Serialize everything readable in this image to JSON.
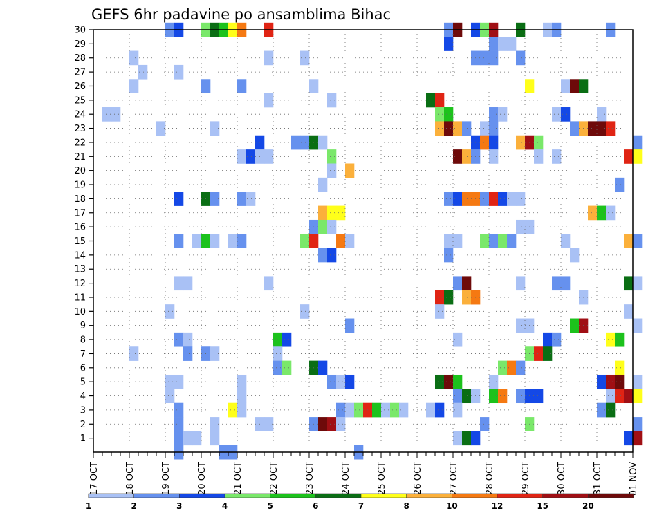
{
  "chart_data": {
    "type": "heatmap",
    "title": "GEFS 6hr padavine po ansamblima Bihac",
    "x_tick_labels": [
      "17 OCT",
      "18 OCT",
      "19 OCT",
      "20 OCT",
      "21 OCT",
      "22 OCT",
      "23 OCT",
      "24 OCT",
      "25 OCT",
      "26 OCT",
      "27 OCT",
      "28 OCT",
      "29 OCT",
      "30 OCT",
      "31 OCT",
      "01 NOV"
    ],
    "y_tick_labels": [
      "1",
      "2",
      "3",
      "4",
      "5",
      "6",
      "7",
      "8",
      "9",
      "10",
      "11",
      "12",
      "13",
      "14",
      "15",
      "16",
      "17",
      "18",
      "19",
      "20",
      "21",
      "22",
      "23",
      "24",
      "25",
      "26",
      "27",
      "28",
      "29",
      "30"
    ],
    "xlim_days": [
      0,
      15
    ],
    "ylim_members": [
      0,
      30
    ],
    "grid": true,
    "legend_position": "bottom",
    "legend": {
      "labels": [
        "1",
        "2",
        "3",
        "4",
        "5",
        "6",
        "7",
        "8",
        "10",
        "12",
        "15",
        "20"
      ],
      "colors": [
        "#a9c1f5",
        "#6691ee",
        "#1448e6",
        "#7ae86a",
        "#1cc21c",
        "#0a6e14",
        "#ffff1a",
        "#fbb03b",
        "#f57912",
        "#e02414",
        "#a00f14",
        "#6e0a0a"
      ]
    },
    "color_scale_note": "",
    "cells_format": "[time_step_index (0=17 OCT 00Z, 6-hourly), ensemble_member, color_index]",
    "cells": [
      [
        8,
        30,
        1
      ],
      [
        9,
        30,
        2
      ],
      [
        12,
        30,
        3
      ],
      [
        13,
        30,
        5
      ],
      [
        14,
        30,
        4
      ],
      [
        15,
        30,
        6
      ],
      [
        16,
        30,
        8
      ],
      [
        19,
        30,
        9
      ],
      [
        39,
        30,
        1
      ],
      [
        40,
        30,
        11
      ],
      [
        42,
        30,
        2
      ],
      [
        43,
        30,
        3
      ],
      [
        44,
        30,
        10
      ],
      [
        47,
        30,
        5
      ],
      [
        50,
        30,
        0
      ],
      [
        51,
        30,
        1
      ],
      [
        57,
        30,
        1
      ],
      [
        39,
        29,
        2
      ],
      [
        44,
        29,
        1
      ],
      [
        45,
        29,
        0
      ],
      [
        46,
        29,
        0
      ],
      [
        4,
        28,
        0
      ],
      [
        19,
        28,
        0
      ],
      [
        23,
        28,
        0
      ],
      [
        42,
        28,
        1
      ],
      [
        43,
        28,
        1
      ],
      [
        44,
        28,
        1
      ],
      [
        47,
        28,
        1
      ],
      [
        5,
        27,
        0
      ],
      [
        9,
        27,
        0
      ],
      [
        4,
        26,
        0
      ],
      [
        12,
        26,
        1
      ],
      [
        16,
        26,
        1
      ],
      [
        24,
        26,
        0
      ],
      [
        48,
        26,
        6
      ],
      [
        52,
        26,
        0
      ],
      [
        53,
        26,
        11
      ],
      [
        54,
        26,
        5
      ],
      [
        19,
        25,
        0
      ],
      [
        26,
        25,
        0
      ],
      [
        37,
        25,
        5
      ],
      [
        38,
        25,
        9
      ],
      [
        1,
        24,
        0
      ],
      [
        2,
        24,
        0
      ],
      [
        38,
        24,
        3
      ],
      [
        39,
        24,
        4
      ],
      [
        44,
        24,
        1
      ],
      [
        45,
        24,
        0
      ],
      [
        51,
        24,
        0
      ],
      [
        52,
        24,
        2
      ],
      [
        56,
        24,
        0
      ],
      [
        7,
        23,
        0
      ],
      [
        13,
        23,
        0
      ],
      [
        38,
        23,
        7
      ],
      [
        39,
        23,
        11
      ],
      [
        40,
        23,
        7
      ],
      [
        41,
        23,
        1
      ],
      [
        43,
        23,
        0
      ],
      [
        44,
        23,
        1
      ],
      [
        53,
        23,
        1
      ],
      [
        54,
        23,
        7
      ],
      [
        55,
        23,
        11
      ],
      [
        56,
        23,
        11
      ],
      [
        57,
        23,
        9
      ],
      [
        18,
        22,
        2
      ],
      [
        22,
        22,
        1
      ],
      [
        23,
        22,
        1
      ],
      [
        24,
        22,
        5
      ],
      [
        25,
        22,
        0
      ],
      [
        42,
        22,
        2
      ],
      [
        43,
        22,
        8
      ],
      [
        44,
        22,
        2
      ],
      [
        47,
        22,
        7
      ],
      [
        48,
        22,
        10
      ],
      [
        49,
        22,
        3
      ],
      [
        60,
        22,
        1
      ],
      [
        16,
        21,
        0
      ],
      [
        17,
        21,
        2
      ],
      [
        18,
        21,
        0
      ],
      [
        19,
        21,
        0
      ],
      [
        26,
        21,
        3
      ],
      [
        40,
        21,
        11
      ],
      [
        41,
        21,
        7
      ],
      [
        42,
        21,
        1
      ],
      [
        44,
        21,
        0
      ],
      [
        49,
        21,
        0
      ],
      [
        51,
        21,
        0
      ],
      [
        59,
        21,
        9
      ],
      [
        60,
        21,
        6
      ],
      [
        26,
        20,
        0
      ],
      [
        28,
        20,
        7
      ],
      [
        25,
        19,
        0
      ],
      [
        58,
        19,
        1
      ],
      [
        12,
        18,
        5
      ],
      [
        13,
        18,
        1
      ],
      [
        9,
        18,
        2
      ],
      [
        16,
        18,
        1
      ],
      [
        17,
        18,
        0
      ],
      [
        39,
        18,
        1
      ],
      [
        40,
        18,
        2
      ],
      [
        41,
        18,
        8
      ],
      [
        42,
        18,
        8
      ],
      [
        43,
        18,
        1
      ],
      [
        44,
        18,
        9
      ],
      [
        45,
        18,
        2
      ],
      [
        46,
        18,
        0
      ],
      [
        47,
        18,
        0
      ],
      [
        25,
        17,
        7
      ],
      [
        26,
        17,
        6
      ],
      [
        27,
        17,
        6
      ],
      [
        55,
        17,
        7
      ],
      [
        56,
        17,
        4
      ],
      [
        57,
        17,
        0
      ],
      [
        24,
        16,
        1
      ],
      [
        25,
        16,
        3
      ],
      [
        26,
        16,
        0
      ],
      [
        47,
        16,
        0
      ],
      [
        48,
        16,
        0
      ],
      [
        9,
        15,
        1
      ],
      [
        11,
        15,
        0
      ],
      [
        12,
        15,
        4
      ],
      [
        13,
        15,
        0
      ],
      [
        15,
        15,
        0
      ],
      [
        16,
        15,
        1
      ],
      [
        23,
        15,
        3
      ],
      [
        24,
        15,
        9
      ],
      [
        27,
        15,
        8
      ],
      [
        28,
        15,
        0
      ],
      [
        39,
        15,
        0
      ],
      [
        40,
        15,
        0
      ],
      [
        43,
        15,
        3
      ],
      [
        44,
        15,
        1
      ],
      [
        45,
        15,
        3
      ],
      [
        46,
        15,
        1
      ],
      [
        52,
        15,
        0
      ],
      [
        59,
        15,
        7
      ],
      [
        60,
        15,
        1
      ],
      [
        25,
        14,
        1
      ],
      [
        26,
        14,
        2
      ],
      [
        39,
        14,
        1
      ],
      [
        53,
        14,
        0
      ],
      [
        9,
        12,
        0
      ],
      [
        10,
        12,
        0
      ],
      [
        19,
        12,
        0
      ],
      [
        40,
        12,
        1
      ],
      [
        41,
        12,
        11
      ],
      [
        47,
        12,
        0
      ],
      [
        51,
        12,
        1
      ],
      [
        52,
        12,
        1
      ],
      [
        59,
        12,
        5
      ],
      [
        60,
        12,
        0
      ],
      [
        38,
        11,
        9
      ],
      [
        39,
        11,
        5
      ],
      [
        41,
        11,
        7
      ],
      [
        42,
        11,
        8
      ],
      [
        54,
        11,
        0
      ],
      [
        8,
        10,
        0
      ],
      [
        23,
        10,
        0
      ],
      [
        38,
        10,
        0
      ],
      [
        59,
        10,
        0
      ],
      [
        28,
        9,
        1
      ],
      [
        47,
        9,
        0
      ],
      [
        48,
        9,
        0
      ],
      [
        53,
        9,
        4
      ],
      [
        54,
        9,
        10
      ],
      [
        60,
        9,
        0
      ],
      [
        9,
        8,
        1
      ],
      [
        10,
        8,
        0
      ],
      [
        20,
        8,
        4
      ],
      [
        21,
        8,
        2
      ],
      [
        40,
        8,
        0
      ],
      [
        50,
        8,
        2
      ],
      [
        51,
        8,
        1
      ],
      [
        57,
        8,
        6
      ],
      [
        58,
        8,
        4
      ],
      [
        4,
        7,
        0
      ],
      [
        10,
        7,
        1
      ],
      [
        12,
        7,
        1
      ],
      [
        13,
        7,
        0
      ],
      [
        20,
        7,
        0
      ],
      [
        48,
        7,
        3
      ],
      [
        49,
        7,
        9
      ],
      [
        50,
        7,
        5
      ],
      [
        20,
        6,
        1
      ],
      [
        21,
        6,
        3
      ],
      [
        24,
        6,
        5
      ],
      [
        25,
        6,
        2
      ],
      [
        45,
        6,
        3
      ],
      [
        46,
        6,
        8
      ],
      [
        47,
        6,
        1
      ],
      [
        58,
        6,
        6
      ],
      [
        8,
        5,
        0
      ],
      [
        9,
        5,
        0
      ],
      [
        16,
        5,
        0
      ],
      [
        26,
        5,
        1
      ],
      [
        27,
        5,
        0
      ],
      [
        28,
        5,
        2
      ],
      [
        38,
        5,
        5
      ],
      [
        39,
        5,
        11
      ],
      [
        40,
        5,
        4
      ],
      [
        44,
        5,
        0
      ],
      [
        56,
        5,
        2
      ],
      [
        57,
        5,
        10
      ],
      [
        58,
        5,
        11
      ],
      [
        60,
        5,
        0
      ],
      [
        8,
        4,
        0
      ],
      [
        16,
        4,
        0
      ],
      [
        40,
        4,
        1
      ],
      [
        41,
        4,
        5
      ],
      [
        42,
        4,
        0
      ],
      [
        44,
        4,
        4
      ],
      [
        45,
        4,
        8
      ],
      [
        47,
        4,
        1
      ],
      [
        48,
        4,
        2
      ],
      [
        49,
        4,
        2
      ],
      [
        57,
        4,
        0
      ],
      [
        58,
        4,
        9
      ],
      [
        59,
        4,
        10
      ],
      [
        60,
        4,
        6
      ],
      [
        9,
        3,
        1
      ],
      [
        15,
        3,
        6
      ],
      [
        16,
        3,
        0
      ],
      [
        27,
        3,
        1
      ],
      [
        28,
        3,
        0
      ],
      [
        29,
        3,
        3
      ],
      [
        30,
        3,
        9
      ],
      [
        31,
        3,
        4
      ],
      [
        32,
        3,
        0
      ],
      [
        33,
        3,
        3
      ],
      [
        34,
        3,
        0
      ],
      [
        37,
        3,
        0
      ],
      [
        38,
        3,
        2
      ],
      [
        40,
        3,
        0
      ],
      [
        56,
        3,
        1
      ],
      [
        57,
        3,
        5
      ],
      [
        9,
        2,
        1
      ],
      [
        13,
        2,
        0
      ],
      [
        18,
        2,
        0
      ],
      [
        19,
        2,
        0
      ],
      [
        24,
        2,
        1
      ],
      [
        25,
        2,
        11
      ],
      [
        26,
        2,
        10
      ],
      [
        27,
        2,
        0
      ],
      [
        43,
        2,
        1
      ],
      [
        48,
        2,
        3
      ],
      [
        60,
        2,
        1
      ],
      [
        9,
        1,
        1
      ],
      [
        10,
        1,
        0
      ],
      [
        11,
        1,
        0
      ],
      [
        13,
        1,
        0
      ],
      [
        40,
        1,
        0
      ],
      [
        41,
        1,
        5
      ],
      [
        42,
        1,
        2
      ],
      [
        59,
        1,
        2
      ],
      [
        60,
        1,
        10
      ],
      [
        9,
        0,
        1
      ],
      [
        14,
        0,
        1
      ],
      [
        15,
        0,
        1
      ],
      [
        29,
        0,
        1
      ]
    ]
  }
}
